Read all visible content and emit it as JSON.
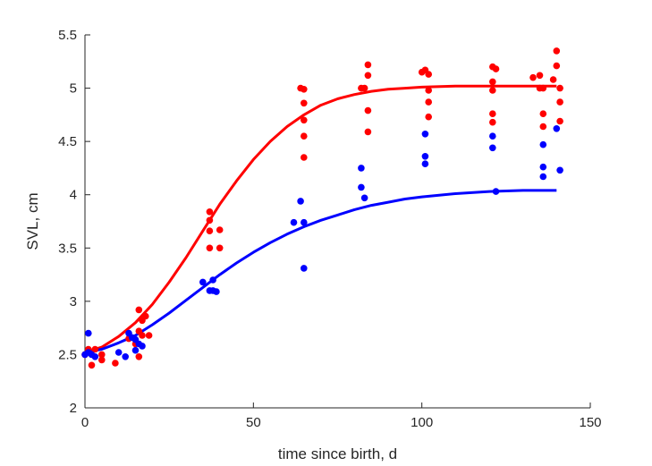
{
  "chart_data": {
    "type": "scatter",
    "xlabel": "time since birth, d",
    "ylabel": "SVL, cm",
    "xlim": [
      0,
      150
    ],
    "ylim": [
      2,
      5.5
    ],
    "xticks": [
      0,
      50,
      100,
      150
    ],
    "xtick_labels": [
      "0",
      "50",
      "100",
      "150"
    ],
    "yticks": [
      2,
      2.5,
      3,
      3.5,
      4,
      4.5,
      5,
      5.5
    ],
    "ytick_labels": [
      "2",
      "2.5",
      "3",
      "3.5",
      "4",
      "4.5",
      "5",
      "5.5"
    ],
    "grid": false,
    "series": [
      {
        "color": "#ff0000",
        "points": [
          [
            0,
            2.5
          ],
          [
            1,
            2.55
          ],
          [
            2,
            2.4
          ],
          [
            3,
            2.55
          ],
          [
            5,
            2.45
          ],
          [
            5,
            2.5
          ],
          [
            9,
            2.42
          ],
          [
            13,
            2.65
          ],
          [
            15,
            2.6
          ],
          [
            16,
            2.72
          ],
          [
            16,
            2.92
          ],
          [
            17,
            2.68
          ],
          [
            17,
            2.82
          ],
          [
            18,
            2.86
          ],
          [
            19,
            2.68
          ],
          [
            16,
            2.48
          ],
          [
            37,
            3.84
          ],
          [
            37,
            3.76
          ],
          [
            37,
            3.66
          ],
          [
            37,
            3.5
          ],
          [
            40,
            3.67
          ],
          [
            40,
            3.5
          ],
          [
            64,
            5.0
          ],
          [
            65,
            4.99
          ],
          [
            65,
            4.86
          ],
          [
            65,
            4.7
          ],
          [
            65,
            4.55
          ],
          [
            65,
            4.35
          ],
          [
            82,
            5.0
          ],
          [
            83,
            5.0
          ],
          [
            84,
            5.22
          ],
          [
            84,
            5.12
          ],
          [
            84,
            4.79
          ],
          [
            84,
            4.59
          ],
          [
            100,
            5.15
          ],
          [
            101,
            5.17
          ],
          [
            102,
            5.13
          ],
          [
            102,
            4.98
          ],
          [
            102,
            4.87
          ],
          [
            102,
            4.73
          ],
          [
            121,
            5.2
          ],
          [
            122,
            5.18
          ],
          [
            121,
            5.06
          ],
          [
            121,
            4.98
          ],
          [
            121,
            4.76
          ],
          [
            121,
            4.68
          ],
          [
            133,
            5.1
          ],
          [
            135,
            5.12
          ],
          [
            135,
            5.0
          ],
          [
            136,
            5.0
          ],
          [
            136,
            4.76
          ],
          [
            136,
            4.64
          ],
          [
            139,
            5.08
          ],
          [
            140,
            5.35
          ],
          [
            140,
            5.21
          ],
          [
            141,
            5.0
          ],
          [
            141,
            4.87
          ],
          [
            141,
            4.69
          ]
        ],
        "fit": [
          [
            0,
            2.52
          ],
          [
            5,
            2.57
          ],
          [
            10,
            2.67
          ],
          [
            15,
            2.8
          ],
          [
            20,
            2.97
          ],
          [
            25,
            3.18
          ],
          [
            30,
            3.41
          ],
          [
            35,
            3.66
          ],
          [
            40,
            3.91
          ],
          [
            45,
            4.13
          ],
          [
            50,
            4.33
          ],
          [
            55,
            4.5
          ],
          [
            60,
            4.64
          ],
          [
            65,
            4.75
          ],
          [
            70,
            4.84
          ],
          [
            75,
            4.9
          ],
          [
            80,
            4.94
          ],
          [
            85,
            4.97
          ],
          [
            90,
            4.99
          ],
          [
            95,
            5.0
          ],
          [
            100,
            5.01
          ],
          [
            110,
            5.02
          ],
          [
            120,
            5.02
          ],
          [
            130,
            5.02
          ],
          [
            140,
            5.02
          ]
        ]
      },
      {
        "color": "#0000ff",
        "points": [
          [
            1,
            2.7
          ],
          [
            0,
            2.5
          ],
          [
            1,
            2.52
          ],
          [
            2,
            2.5
          ],
          [
            3,
            2.48
          ],
          [
            10,
            2.52
          ],
          [
            12,
            2.48
          ],
          [
            13,
            2.7
          ],
          [
            14,
            2.66
          ],
          [
            15,
            2.64
          ],
          [
            15,
            2.54
          ],
          [
            16,
            2.6
          ],
          [
            17,
            2.58
          ],
          [
            35,
            3.18
          ],
          [
            37,
            3.1
          ],
          [
            38,
            3.2
          ],
          [
            38,
            3.1
          ],
          [
            39,
            3.09
          ],
          [
            62,
            3.74
          ],
          [
            64,
            3.94
          ],
          [
            65,
            3.74
          ],
          [
            65,
            3.31
          ],
          [
            82,
            4.25
          ],
          [
            82,
            4.07
          ],
          [
            83,
            3.97
          ],
          [
            101,
            4.57
          ],
          [
            101,
            4.36
          ],
          [
            101,
            4.29
          ],
          [
            121,
            4.55
          ],
          [
            121,
            4.44
          ],
          [
            122,
            4.03
          ],
          [
            136,
            4.47
          ],
          [
            136,
            4.26
          ],
          [
            136,
            4.17
          ],
          [
            140,
            4.62
          ],
          [
            141,
            4.23
          ]
        ],
        "fit": [
          [
            0,
            2.52
          ],
          [
            5,
            2.55
          ],
          [
            10,
            2.61
          ],
          [
            15,
            2.68
          ],
          [
            20,
            2.78
          ],
          [
            25,
            2.89
          ],
          [
            30,
            3.01
          ],
          [
            35,
            3.13
          ],
          [
            40,
            3.25
          ],
          [
            45,
            3.36
          ],
          [
            50,
            3.46
          ],
          [
            55,
            3.55
          ],
          [
            60,
            3.63
          ],
          [
            65,
            3.7
          ],
          [
            70,
            3.76
          ],
          [
            75,
            3.81
          ],
          [
            80,
            3.86
          ],
          [
            85,
            3.9
          ],
          [
            90,
            3.93
          ],
          [
            95,
            3.96
          ],
          [
            100,
            3.98
          ],
          [
            110,
            4.01
          ],
          [
            120,
            4.03
          ],
          [
            130,
            4.04
          ],
          [
            140,
            4.04
          ]
        ]
      }
    ]
  }
}
